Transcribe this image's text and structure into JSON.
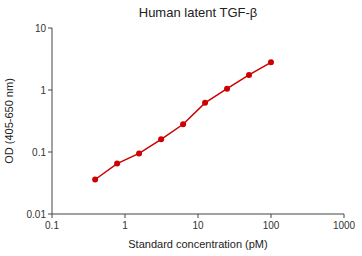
{
  "chart_data": {
    "type": "line",
    "title": "Human latent TGF-β",
    "xlabel": "Standard concentration (pM)",
    "ylabel": "OD (405-650 nm)",
    "x": [
      0.39,
      0.78,
      1.56,
      3.125,
      6.25,
      12.5,
      25,
      50,
      100
    ],
    "values": [
      0.036,
      0.065,
      0.095,
      0.16,
      0.28,
      0.62,
      1.05,
      1.75,
      2.8
    ],
    "color": "#cc0000",
    "marker": "circle",
    "log": true,
    "xlim": [
      0.1,
      1000
    ],
    "ylim": [
      0.01,
      10
    ],
    "xticks": [
      0.1,
      1,
      10,
      100,
      1000
    ],
    "yticks": [
      0.01,
      0.1,
      1,
      10
    ]
  }
}
